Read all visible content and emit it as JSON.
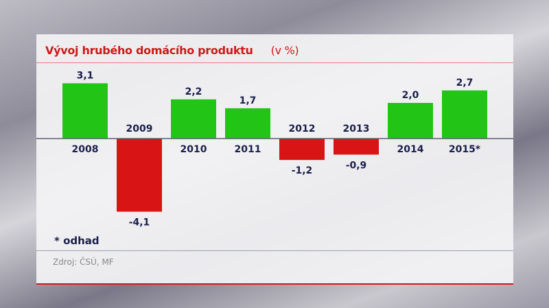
{
  "chart_data": {
    "type": "bar",
    "title": "Vývoj hrubého domácího produktu",
    "unit": "(v %)",
    "categories": [
      "2008",
      "2009",
      "2010",
      "2011",
      "2012",
      "2013",
      "2014",
      "2015*"
    ],
    "values": [
      3.1,
      -4.1,
      2.2,
      1.7,
      -1.2,
      -0.9,
      2.0,
      2.7
    ],
    "value_labels": [
      "3,1",
      "-4,1",
      "2,2",
      "1,7",
      "-1,2",
      "-0,9",
      "2,0",
      "2,7"
    ],
    "colors": {
      "positive": "#22c515",
      "negative": "#d81414"
    },
    "grid": false,
    "note": "* odhad",
    "source": "Zdroj: ČSÚ, MF"
  }
}
